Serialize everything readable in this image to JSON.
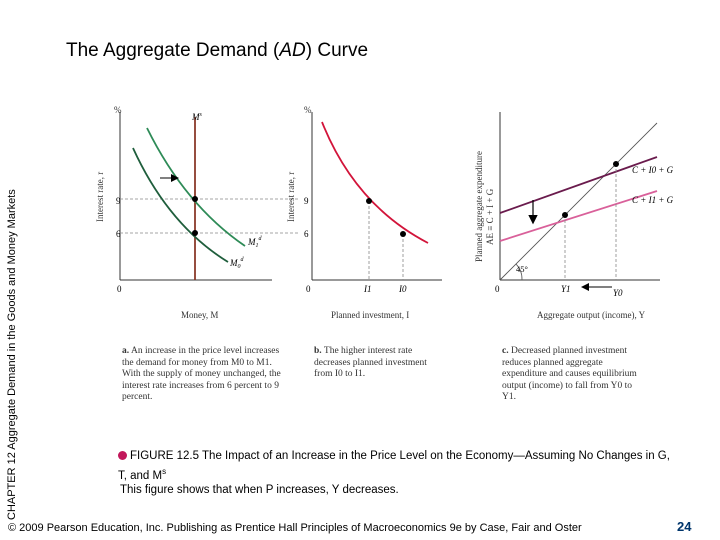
{
  "side_label": "CHAPTER 12 Aggregate Demand in the Goods and Money Markets",
  "title_pre": "The Aggregate Demand (",
  "title_ad": "AD",
  "title_post": ") Curve",
  "panel_a": {
    "y_unit": "%",
    "y_axis_label": "Interest rate, r",
    "x_axis_label": "Money, M",
    "supply_label": "M",
    "supply_sup": "s",
    "demand1_label": "M",
    "demand1_sub": "1",
    "demand1_sup": "d",
    "demand0_label": "M",
    "demand0_sub": "0",
    "demand0_sup": "d",
    "tick_9": "9",
    "tick_6": "6",
    "origin": "0",
    "caption_bold": "a.",
    "caption_text": "An increase in the price level increases the demand for money from M0 to M1. With the supply of money unchanged, the interest rate increases from 6 percent to 9 percent."
  },
  "panel_b": {
    "y_unit": "%",
    "y_axis_label": "Interest rate, r",
    "x_axis_label": "Planned investment, I",
    "tick_9": "9",
    "tick_6": "6",
    "origin": "0",
    "i1": "I1",
    "i0": "I0",
    "caption_bold": "b.",
    "caption_text": "The higher interest rate decreases planned investment from I0 to I1."
  },
  "panel_c": {
    "y_axis_label_1": "Planned aggregate expenditure",
    "y_axis_label_2": "AE ≡ C + I + G",
    "x_axis_label": "Aggregate output (income), Y",
    "angle": "45°",
    "origin": "0",
    "line_upper": "C + I0 + G",
    "line_lower": "C + I1 + G",
    "y1": "Y1",
    "y0": "Y0",
    "caption_bold": "c.",
    "caption_text": "Decreased planned investment reduces planned aggregate expenditure and causes equilibrium output (income) to fall from Y0 to Y1."
  },
  "caption": {
    "figure_label": "FIGURE 12.5",
    "figure_title": "The Impact of an Increase in the Price Level on the Economy—Assuming No Changes in G, T, and M",
    "figure_title_sup": "s",
    "description": "This figure shows that when P increases, Y decreases."
  },
  "footer": {
    "text": "© 2009 Pearson Education, Inc. Publishing as Prentice Hall   Principles of Macroeconomics 9e by Case, Fair and Oster",
    "page": "24"
  },
  "colors": {
    "green": "#2e8b57",
    "dark_green": "#1f5e3c",
    "red": "#d2143a",
    "purple": "#6a1b4d",
    "pink": "#d9609a",
    "brown": "#8b3a2a",
    "page_num": "#00356b"
  }
}
